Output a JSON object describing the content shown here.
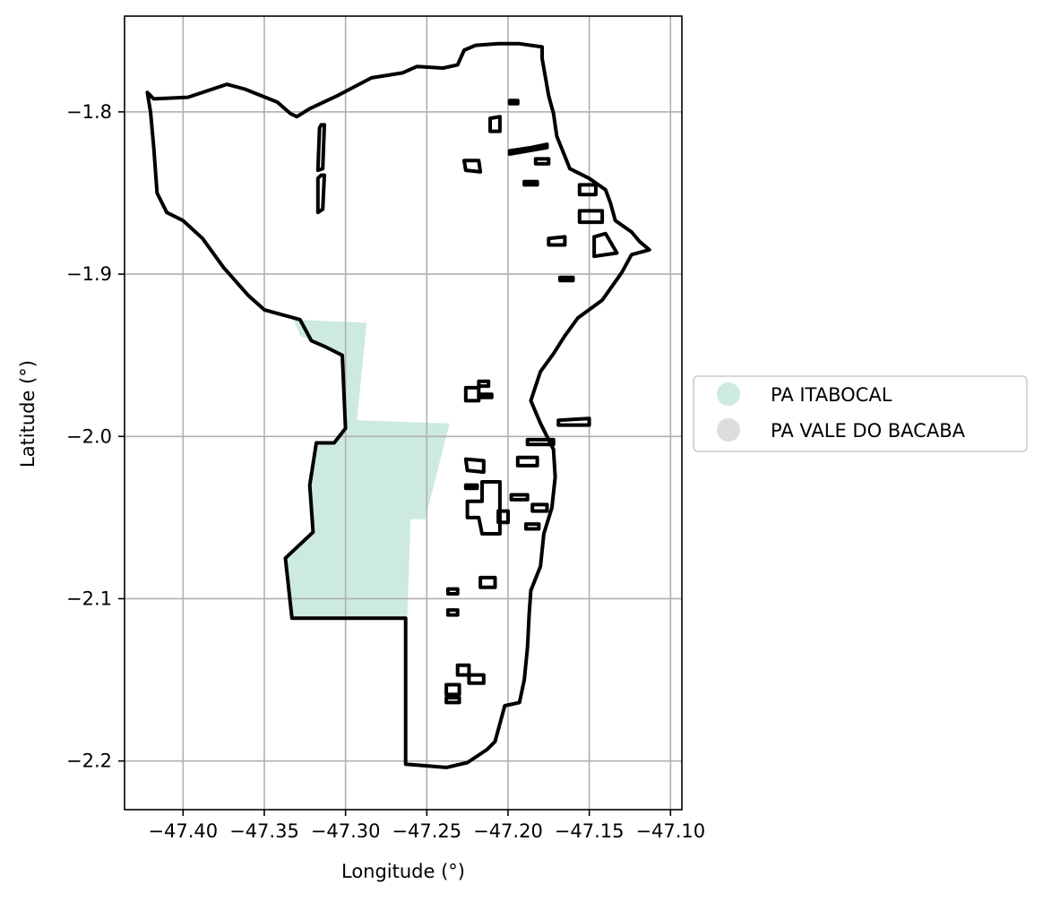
{
  "chart_data": {
    "type": "map",
    "xlabel": "Longitude (°)",
    "ylabel": "Latitude (°)",
    "xlim": [
      -47.436,
      -47.093
    ],
    "ylim": [
      -2.23,
      -1.741
    ],
    "x_ticks": [
      -47.4,
      -47.35,
      -47.3,
      -47.25,
      -47.2,
      -47.15,
      -47.1
    ],
    "x_tick_labels": [
      "−47.40",
      "−47.35",
      "−47.30",
      "−47.25",
      "−47.20",
      "−47.15",
      "−47.10"
    ],
    "y_ticks": [
      -1.8,
      -1.9,
      -2.0,
      -2.1,
      -2.2
    ],
    "y_tick_labels": [
      "−1.8",
      "−1.9",
      "−2.0",
      "−2.1",
      "−2.2"
    ],
    "grid": true,
    "legend_position": "right",
    "legend": [
      {
        "label": "PA ITABOCAL",
        "color": "#cdeade"
      },
      {
        "label": "PA VALE DO BACABA",
        "color": "#dddddd"
      }
    ],
    "boundary_color": "#000000",
    "fill_region": {
      "name": "PA ITABOCAL",
      "color": "#cdeade",
      "coords": [
        [
          -47.332,
          -1.928
        ],
        [
          -47.287,
          -1.93
        ],
        [
          -47.293,
          -1.99
        ],
        [
          -47.236,
          -1.992
        ],
        [
          -47.251,
          -2.051
        ],
        [
          -47.26,
          -2.051
        ],
        [
          -47.262,
          -2.112
        ],
        [
          -47.333,
          -2.112
        ],
        [
          -47.337,
          -2.075
        ],
        [
          -47.32,
          -2.059
        ],
        [
          -47.322,
          -2.03
        ],
        [
          -47.318,
          -2.004
        ],
        [
          -47.307,
          -2.004
        ],
        [
          -47.3,
          -1.995
        ],
        [
          -47.302,
          -1.95
        ],
        [
          -47.312,
          -1.945
        ],
        [
          -47.328,
          -1.938
        ]
      ]
    },
    "outer_boundary": [
      [
        -47.422,
        -1.788
      ],
      [
        -47.418,
        -1.792
      ],
      [
        -47.397,
        -1.791
      ],
      [
        -47.373,
        -1.783
      ],
      [
        -47.362,
        -1.786
      ],
      [
        -47.342,
        -1.794
      ],
      [
        -47.334,
        -1.801
      ],
      [
        -47.33,
        -1.803
      ],
      [
        -47.322,
        -1.798
      ],
      [
        -47.305,
        -1.79
      ],
      [
        -47.284,
        -1.779
      ],
      [
        -47.265,
        -1.776
      ],
      [
        -47.256,
        -1.772
      ],
      [
        -47.24,
        -1.773
      ],
      [
        -47.231,
        -1.771
      ],
      [
        -47.227,
        -1.762
      ],
      [
        -47.22,
        -1.759
      ],
      [
        -47.206,
        -1.758
      ],
      [
        -47.193,
        -1.758
      ],
      [
        -47.179,
        -1.76
      ],
      [
        -47.179,
        -1.767
      ],
      [
        -47.175,
        -1.79
      ],
      [
        -47.172,
        -1.801
      ],
      [
        -47.17,
        -1.815
      ],
      [
        -47.162,
        -1.835
      ],
      [
        -47.15,
        -1.841
      ],
      [
        -47.14,
        -1.848
      ],
      [
        -47.137,
        -1.856
      ],
      [
        -47.134,
        -1.867
      ],
      [
        -47.124,
        -1.874
      ],
      [
        -47.119,
        -1.88
      ],
      [
        -47.113,
        -1.885
      ],
      [
        -47.124,
        -1.888
      ],
      [
        -47.13,
        -1.899
      ],
      [
        -47.142,
        -1.916
      ],
      [
        -47.157,
        -1.927
      ],
      [
        -47.165,
        -1.938
      ],
      [
        -47.172,
        -1.949
      ],
      [
        -47.18,
        -1.96
      ],
      [
        -47.186,
        -1.978
      ],
      [
        -47.18,
        -1.992
      ],
      [
        -47.172,
        -2.008
      ],
      [
        -47.171,
        -2.025
      ],
      [
        -47.173,
        -2.044
      ],
      [
        -47.178,
        -2.06
      ],
      [
        -47.18,
        -2.08
      ],
      [
        -47.186,
        -2.095
      ],
      [
        -47.187,
        -2.11
      ],
      [
        -47.188,
        -2.13
      ],
      [
        -47.19,
        -2.15
      ],
      [
        -47.193,
        -2.164
      ],
      [
        -47.202,
        -2.166
      ],
      [
        -47.205,
        -2.177
      ],
      [
        -47.208,
        -2.188
      ],
      [
        -47.213,
        -2.193
      ],
      [
        -47.225,
        -2.201
      ],
      [
        -47.238,
        -2.204
      ],
      [
        -47.25,
        -2.203
      ],
      [
        -47.263,
        -2.202
      ],
      [
        -47.263,
        -2.112
      ],
      [
        -47.333,
        -2.112
      ],
      [
        -47.337,
        -2.075
      ],
      [
        -47.32,
        -2.059
      ],
      [
        -47.322,
        -2.03
      ],
      [
        -47.318,
        -2.004
      ],
      [
        -47.307,
        -2.004
      ],
      [
        -47.3,
        -1.995
      ],
      [
        -47.302,
        -1.95
      ],
      [
        -47.312,
        -1.945
      ],
      [
        -47.321,
        -1.941
      ],
      [
        -47.328,
        -1.928
      ],
      [
        -47.339,
        -1.925
      ],
      [
        -47.35,
        -1.922
      ],
      [
        -47.36,
        -1.913
      ],
      [
        -47.375,
        -1.896
      ],
      [
        -47.388,
        -1.878
      ],
      [
        -47.4,
        -1.867
      ],
      [
        -47.41,
        -1.862
      ],
      [
        -47.416,
        -1.85
      ],
      [
        -47.418,
        -1.822
      ],
      [
        -47.42,
        -1.8
      ]
    ],
    "inner_parcels": [
      [
        [
          -47.315,
          -1.808
        ],
        [
          -47.313,
          -1.808
        ],
        [
          -47.314,
          -1.835
        ],
        [
          -47.317,
          -1.836
        ],
        [
          -47.316,
          -1.81
        ]
      ],
      [
        [
          -47.315,
          -1.839
        ],
        [
          -47.313,
          -1.839
        ],
        [
          -47.314,
          -1.86
        ],
        [
          -47.317,
          -1.862
        ],
        [
          -47.317,
          -1.841
        ]
      ],
      [
        [
          -47.226,
          -1.836
        ],
        [
          -47.227,
          -1.83
        ],
        [
          -47.218,
          -1.83
        ],
        [
          -47.217,
          -1.837
        ]
      ],
      [
        [
          -47.211,
          -1.804
        ],
        [
          -47.205,
          -1.803
        ],
        [
          -47.205,
          -1.812
        ],
        [
          -47.211,
          -1.812
        ]
      ],
      [
        [
          -47.199,
          -1.793
        ],
        [
          -47.194,
          -1.793
        ],
        [
          -47.194,
          -1.795
        ],
        [
          -47.199,
          -1.795
        ]
      ],
      [
        [
          -47.199,
          -1.824
        ],
        [
          -47.186,
          -1.822
        ],
        [
          -47.176,
          -1.82
        ],
        [
          -47.176,
          -1.822
        ],
        [
          -47.199,
          -1.826
        ]
      ],
      [
        [
          -47.183,
          -1.829
        ],
        [
          -47.175,
          -1.829
        ],
        [
          -47.175,
          -1.832
        ],
        [
          -47.183,
          -1.832
        ]
      ],
      [
        [
          -47.19,
          -1.843
        ],
        [
          -47.182,
          -1.843
        ],
        [
          -47.182,
          -1.845
        ],
        [
          -47.19,
          -1.845
        ]
      ],
      [
        [
          -47.156,
          -1.845
        ],
        [
          -47.146,
          -1.845
        ],
        [
          -47.146,
          -1.851
        ],
        [
          -47.156,
          -1.851
        ]
      ],
      [
        [
          -47.156,
          -1.861
        ],
        [
          -47.142,
          -1.861
        ],
        [
          -47.142,
          -1.868
        ],
        [
          -47.156,
          -1.868
        ]
      ],
      [
        [
          -47.175,
          -1.878
        ],
        [
          -47.165,
          -1.877
        ],
        [
          -47.165,
          -1.882
        ],
        [
          -47.175,
          -1.882
        ]
      ],
      [
        [
          -47.147,
          -1.877
        ],
        [
          -47.14,
          -1.875
        ],
        [
          -47.133,
          -1.887
        ],
        [
          -47.147,
          -1.889
        ]
      ],
      [
        [
          -47.168,
          -1.902
        ],
        [
          -47.16,
          -1.902
        ],
        [
          -47.16,
          -1.904
        ],
        [
          -47.168,
          -1.904
        ]
      ],
      [
        [
          -47.218,
          -1.966
        ],
        [
          -47.212,
          -1.966
        ],
        [
          -47.212,
          -1.969
        ],
        [
          -47.218,
          -1.969
        ]
      ],
      [
        [
          -47.226,
          -1.97
        ],
        [
          -47.218,
          -1.97
        ],
        [
          -47.218,
          -1.978
        ],
        [
          -47.226,
          -1.978
        ]
      ],
      [
        [
          -47.217,
          -1.974
        ],
        [
          -47.21,
          -1.974
        ],
        [
          -47.21,
          -1.976
        ],
        [
          -47.217,
          -1.976
        ]
      ],
      [
        [
          -47.169,
          -1.99
        ],
        [
          -47.15,
          -1.989
        ],
        [
          -47.15,
          -1.993
        ],
        [
          -47.169,
          -1.993
        ]
      ],
      [
        [
          -47.188,
          -2.002
        ],
        [
          -47.172,
          -2.002
        ],
        [
          -47.172,
          -2.005
        ],
        [
          -47.188,
          -2.005
        ]
      ],
      [
        [
          -47.226,
          -2.014
        ],
        [
          -47.215,
          -2.015
        ],
        [
          -47.215,
          -2.022
        ],
        [
          -47.225,
          -2.021
        ]
      ],
      [
        [
          -47.194,
          -2.013
        ],
        [
          -47.182,
          -2.013
        ],
        [
          -47.182,
          -2.018
        ],
        [
          -47.194,
          -2.018
        ]
      ],
      [
        [
          -47.226,
          -2.03
        ],
        [
          -47.219,
          -2.03
        ],
        [
          -47.219,
          -2.032
        ],
        [
          -47.226,
          -2.032
        ]
      ],
      [
        [
          -47.216,
          -2.028
        ],
        [
          -47.205,
          -2.028
        ],
        [
          -47.205,
          -2.06
        ],
        [
          -47.216,
          -2.06
        ],
        [
          -47.218,
          -2.05
        ],
        [
          -47.225,
          -2.05
        ],
        [
          -47.225,
          -2.04
        ],
        [
          -47.216,
          -2.04
        ]
      ],
      [
        [
          -47.206,
          -2.046
        ],
        [
          -47.2,
          -2.046
        ],
        [
          -47.2,
          -2.053
        ],
        [
          -47.206,
          -2.053
        ]
      ],
      [
        [
          -47.198,
          -2.036
        ],
        [
          -47.188,
          -2.036
        ],
        [
          -47.188,
          -2.039
        ],
        [
          -47.198,
          -2.039
        ]
      ],
      [
        [
          -47.185,
          -2.042
        ],
        [
          -47.176,
          -2.042
        ],
        [
          -47.176,
          -2.046
        ],
        [
          -47.185,
          -2.046
        ]
      ],
      [
        [
          -47.189,
          -2.054
        ],
        [
          -47.181,
          -2.054
        ],
        [
          -47.181,
          -2.057
        ],
        [
          -47.189,
          -2.057
        ]
      ],
      [
        [
          -47.217,
          -2.087
        ],
        [
          -47.208,
          -2.087
        ],
        [
          -47.208,
          -2.093
        ],
        [
          -47.217,
          -2.093
        ]
      ],
      [
        [
          -47.237,
          -2.094
        ],
        [
          -47.231,
          -2.094
        ],
        [
          -47.231,
          -2.097
        ],
        [
          -47.237,
          -2.097
        ]
      ],
      [
        [
          -47.237,
          -2.107
        ],
        [
          -47.231,
          -2.107
        ],
        [
          -47.231,
          -2.11
        ],
        [
          -47.237,
          -2.11
        ]
      ],
      [
        [
          -47.231,
          -2.141
        ],
        [
          -47.224,
          -2.141
        ],
        [
          -47.224,
          -2.147
        ],
        [
          -47.231,
          -2.147
        ]
      ],
      [
        [
          -47.224,
          -2.147
        ],
        [
          -47.215,
          -2.147
        ],
        [
          -47.215,
          -2.152
        ],
        [
          -47.224,
          -2.152
        ]
      ],
      [
        [
          -47.238,
          -2.153
        ],
        [
          -47.23,
          -2.153
        ],
        [
          -47.23,
          -2.159
        ],
        [
          -47.238,
          -2.159
        ]
      ],
      [
        [
          -47.238,
          -2.161
        ],
        [
          -47.23,
          -2.161
        ],
        [
          -47.23,
          -2.164
        ],
        [
          -47.238,
          -2.164
        ]
      ]
    ]
  }
}
